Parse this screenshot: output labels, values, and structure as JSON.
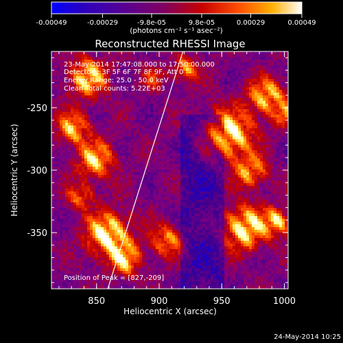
{
  "colorbar": {
    "ticks": [
      "-0.00049",
      "-0.00029",
      "-9.8e-05",
      "9.8e-05",
      "0.00029",
      "0.00049"
    ],
    "unit_label": "(photons cm⁻² s⁻¹ asec⁻²)",
    "range": [
      -0.00049,
      0.00049
    ]
  },
  "chart_data": {
    "type": "heatmap",
    "title": "Reconstructed RHESSI Image",
    "xlabel": "Heliocentric X (arcsec)",
    "ylabel": "Heliocentric Y (arcsec)",
    "xlim": [
      814,
      1003
    ],
    "ylim": [
      -395,
      -205
    ],
    "x_ticks": [
      "850",
      "900",
      "950",
      "1000"
    ],
    "y_ticks": [
      "-250",
      "-300",
      "-350"
    ],
    "annotations": [
      "23-May-2014 17:47:08.000 to 17:50:00.000",
      "Detectors: 3F 5F 6F 7F 8F 9F, Att 0",
      "Energy Range: 25.0 - 50.0 keV",
      "Clean     Total counts: 5.22E+03"
    ],
    "peak_label": "Position of Peak = [827,-209]",
    "peak": [
      827,
      -209
    ],
    "limb_line": [
      [
        859,
        -395
      ],
      [
        919,
        -205
      ]
    ],
    "colormap": [
      "#0000ff",
      "#3b0090",
      "#7f007f",
      "#c00000",
      "#ff4000",
      "#ffa000",
      "#ffff80",
      "#ffffff"
    ]
  },
  "footer": {
    "timestamp": "24-May-2014 10:25"
  }
}
